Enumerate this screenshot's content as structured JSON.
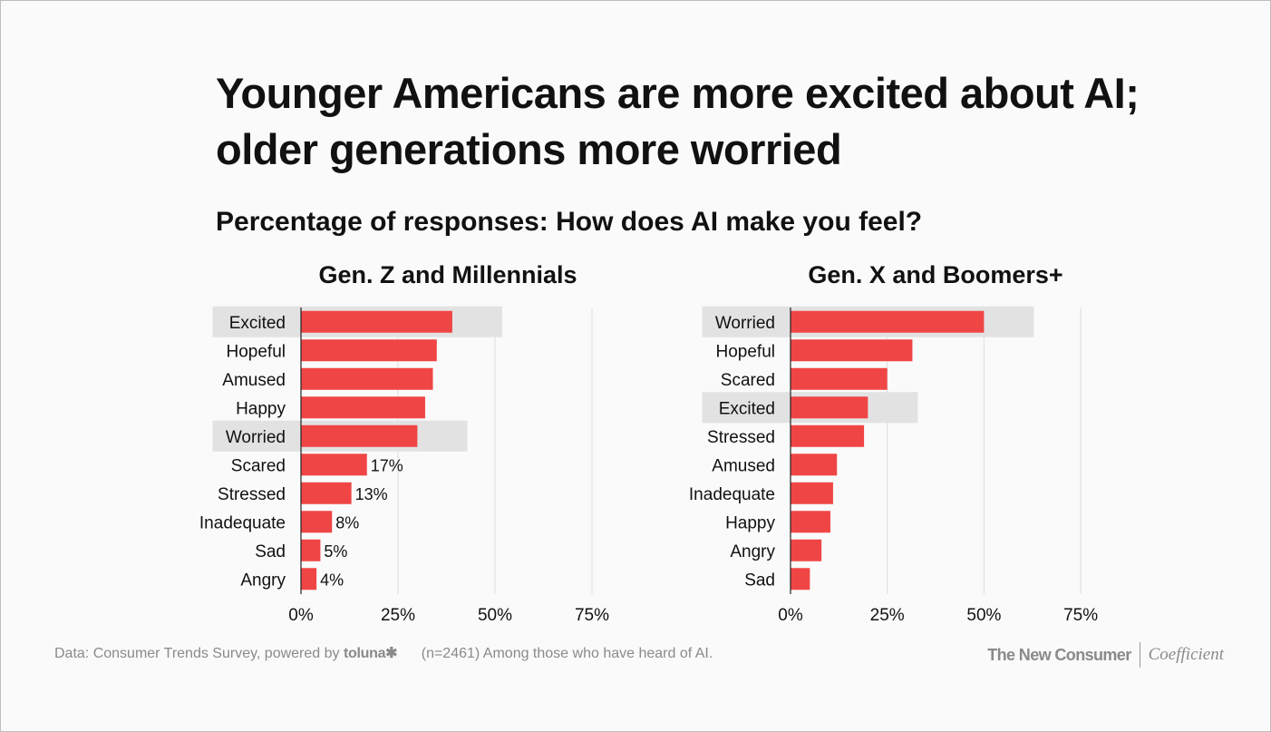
{
  "title": "Younger Americans are more excited about AI; older generations more worried",
  "subtitle": "Percentage of responses: How does AI make you feel?",
  "colors": {
    "bar": "#f04545",
    "highlight": "#e2e2e2",
    "grid": "#dddddd",
    "axis": "#222222",
    "text": "#111111"
  },
  "footer": {
    "data_source": "Data: Consumer Trends Survey, powered by",
    "brand": "toluna",
    "brand_icon": "asterisk-icon",
    "note": "(n=2461) Among those who have heard of AI."
  },
  "logos": {
    "publisher": "The New Consumer",
    "partner": "Coefficient"
  },
  "chart_data": [
    {
      "type": "bar",
      "orientation": "horizontal",
      "title": "Gen. Z and Millennials",
      "categories": [
        "Excited",
        "Hopeful",
        "Amused",
        "Happy",
        "Worried",
        "Scared",
        "Stressed",
        "Inadequate",
        "Sad",
        "Angry"
      ],
      "values": [
        39,
        35,
        34,
        32,
        30,
        17,
        13,
        8,
        5,
        4
      ],
      "data_labels": [
        "",
        "",
        "",
        "",
        "",
        "17%",
        "13%",
        "8%",
        "5%",
        "4%"
      ],
      "highlighted": [
        "Excited",
        "Worried"
      ],
      "xlim": [
        0,
        75
      ],
      "xticks": [
        0,
        25,
        50,
        75
      ],
      "xtick_labels": [
        "0%",
        "25%",
        "50%",
        "75%"
      ],
      "grid": true
    },
    {
      "type": "bar",
      "orientation": "horizontal",
      "title": "Gen. X and Boomers+",
      "categories": [
        "Worried",
        "Hopeful",
        "Scared",
        "Excited",
        "Stressed",
        "Amused",
        "Inadequate",
        "Happy",
        "Angry",
        "Sad"
      ],
      "values": [
        50,
        31.5,
        25,
        20,
        19,
        12,
        11,
        10.3,
        8,
        5
      ],
      "data_labels": [
        "",
        "",
        "",
        "",
        "",
        "",
        "",
        "",
        "",
        ""
      ],
      "highlighted": [
        "Worried",
        "Excited"
      ],
      "xlim": [
        0,
        75
      ],
      "xticks": [
        0,
        25,
        50,
        75
      ],
      "xtick_labels": [
        "0%",
        "25%",
        "50%",
        "75%"
      ],
      "grid": true
    }
  ]
}
